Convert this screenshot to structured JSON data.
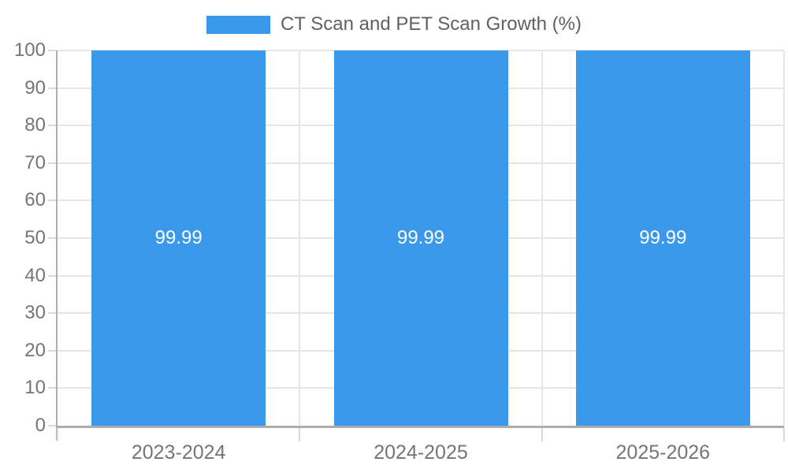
{
  "legend": {
    "label": "CT Scan and PET Scan Growth (%)",
    "swatch_color": "#3B99EC"
  },
  "chart_data": {
    "type": "bar",
    "title": "CT Scan and PET Scan Growth (%)",
    "categories": [
      "2023-2024",
      "2024-2025",
      "2025-2026"
    ],
    "values": [
      99.99,
      99.99,
      99.99
    ],
    "value_labels": [
      "99.99",
      "99.99",
      "99.99"
    ],
    "xlabel": "",
    "ylabel": "",
    "ylim": [
      0,
      100
    ],
    "yticks": [
      0,
      10,
      20,
      30,
      40,
      50,
      60,
      70,
      80,
      90,
      100
    ],
    "grid": true,
    "legend_position": "top-center",
    "colors": {
      "bar": "#3B99EC",
      "value_label": "#FFFFFF",
      "gridline": "#E6E6E6",
      "tick_stub": "#D9D9D9",
      "axis_line": "#ADADAD",
      "tick_label": "#757575",
      "legend_text": "#616161",
      "background": "#FFFFFF"
    }
  }
}
